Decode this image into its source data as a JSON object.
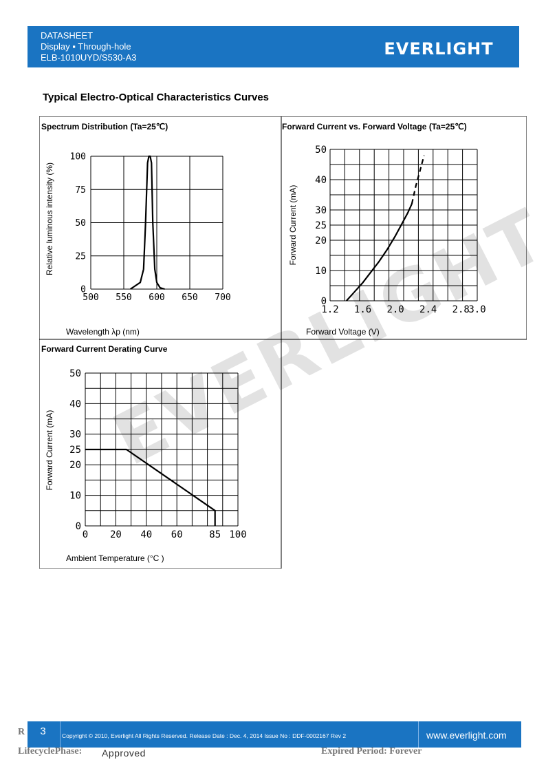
{
  "header": {
    "line1": "DATASHEET",
    "line2": "Display ▪ Through-hole",
    "line3": "ELB-1010UYD/S530-A3",
    "brand": "EVERLIGHT",
    "bg_color": "#1a74c2"
  },
  "section_title": "Typical Electro-Optical Characteristics Curves",
  "charts": {
    "spectrum": {
      "title": "Spectrum Distribution (Ta=25℃)",
      "xlabel": "Wavelength λp (nm)",
      "ylabel": "Relative luminous intensity (%)"
    },
    "ivcurve": {
      "title": "Forward Current vs. Forward Voltage (Ta=25℃)",
      "xlabel": "Forward Voltage (V)",
      "ylabel": "Forward Current (mA)"
    },
    "derating": {
      "title": "Forward Current Derating Curve",
      "xlabel": "Ambient Temperature (°C )",
      "ylabel": "Forward Current (mA)"
    }
  },
  "chart_data": [
    {
      "type": "line",
      "title": "Spectrum Distribution (Ta=25℃)",
      "xlabel": "Wavelength λp (nm)",
      "ylabel": "Relative luminous intensity (%)",
      "xlim": [
        500,
        700
      ],
      "ylim": [
        0,
        100
      ],
      "xticks": [
        "500",
        "550",
        "600",
        "650",
        "700"
      ],
      "yticks": [
        "0",
        "25",
        "50",
        "75",
        "100"
      ],
      "series": [
        {
          "x": [
            560,
            575,
            580,
            583,
            586,
            588,
            590,
            592,
            594,
            597,
            600,
            605,
            612
          ],
          "y": [
            0,
            5,
            15,
            50,
            95,
            100,
            100,
            95,
            50,
            15,
            5,
            1,
            0
          ]
        }
      ]
    },
    {
      "type": "line",
      "title": "Forward Current vs. Forward Voltage (Ta=25℃)",
      "xlabel": "Forward Voltage (V)",
      "ylabel": "Forward Current (mA)",
      "xlim": [
        1.2,
        3.0
      ],
      "ylim": [
        0,
        50
      ],
      "xticks": [
        "1.2",
        "1.6",
        "2.0",
        "2.4",
        "2.8",
        "3.0"
      ],
      "yticks": [
        "0",
        "10",
        "20",
        "25",
        "30",
        "40",
        "50"
      ],
      "series": [
        {
          "style": "solid",
          "x": [
            1.4,
            1.5,
            1.6,
            1.7,
            1.8,
            1.9,
            2.0,
            2.1,
            2.15,
            2.2
          ],
          "y": [
            0,
            3,
            6,
            9.5,
            13,
            17,
            21.5,
            26.5,
            29,
            32
          ]
        },
        {
          "style": "dashed",
          "x": [
            2.2,
            2.25,
            2.3,
            2.35
          ],
          "y": [
            32,
            38,
            43,
            48
          ]
        }
      ]
    },
    {
      "type": "line",
      "title": "Forward Current Derating Curve",
      "xlabel": "Ambient Temperature (°C )",
      "ylabel": "Forward Current (mA)",
      "xlim": [
        0,
        100
      ],
      "ylim": [
        0,
        50
      ],
      "xticks": [
        "0",
        "20",
        "40",
        "60",
        "85",
        "100"
      ],
      "yticks": [
        "0",
        "10",
        "20",
        "25",
        "30",
        "40",
        "50"
      ],
      "series": [
        {
          "x": [
            0,
            27,
            85,
            85
          ],
          "y": [
            25,
            25,
            5,
            0
          ]
        }
      ]
    }
  ],
  "watermark": "EVERLIGHT",
  "footer": {
    "page": "3",
    "copyright": "Copyright © 2010, Everlight All Rights Reserved. Release Date : Dec. 4, 2014 Issue No : DDF-0002167 Rev 2",
    "website": "www.everlight.com"
  },
  "bottom": {
    "r_label": "R",
    "lifecycle_label": "LifecyclePhase:",
    "lifecycle_value": "Approved",
    "expired_label": "Expired Period: Forever"
  }
}
